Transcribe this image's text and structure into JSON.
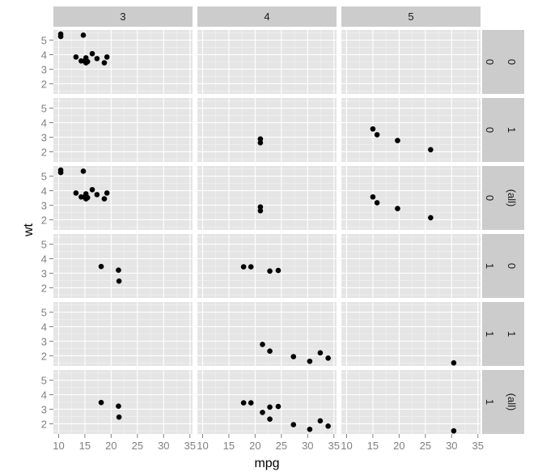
{
  "chart_data": {
    "type": "scatter",
    "xlabel": "mpg",
    "ylabel": "wt",
    "xlim": [
      9,
      35.5
    ],
    "ylim": [
      1.3,
      5.7
    ],
    "x_ticks": [
      10,
      15,
      20,
      25,
      30,
      35
    ],
    "y_ticks": [
      2,
      3,
      4,
      5
    ],
    "grid": true,
    "column_facets": [
      "3",
      "4",
      "5"
    ],
    "row_facets": [
      {
        "label1": "0",
        "label2": "0"
      },
      {
        "label1": "0",
        "label2": "1"
      },
      {
        "label1": "0",
        "label2": "(all)"
      },
      {
        "label1": "1",
        "label2": "0"
      },
      {
        "label1": "1",
        "label2": "1"
      },
      {
        "label1": "1",
        "label2": "(all)"
      }
    ],
    "panels": [
      {
        "row": 0,
        "col": 0,
        "points": [
          [
            10.4,
            5.42
          ],
          [
            10.4,
            5.25
          ],
          [
            14.7,
            5.34
          ],
          [
            13.3,
            3.84
          ],
          [
            14.3,
            3.57
          ],
          [
            15.0,
            3.57
          ],
          [
            15.2,
            3.44
          ],
          [
            15.2,
            3.78
          ],
          [
            15.5,
            3.52
          ],
          [
            16.4,
            4.07
          ],
          [
            17.3,
            3.73
          ],
          [
            18.7,
            3.44
          ],
          [
            19.2,
            3.84
          ]
        ]
      },
      {
        "row": 0,
        "col": 1,
        "points": []
      },
      {
        "row": 0,
        "col": 2,
        "points": []
      },
      {
        "row": 1,
        "col": 0,
        "points": []
      },
      {
        "row": 1,
        "col": 1,
        "points": [
          [
            21.0,
            2.62
          ],
          [
            21.0,
            2.88
          ]
        ]
      },
      {
        "row": 1,
        "col": 2,
        "points": [
          [
            15.0,
            3.57
          ],
          [
            15.8,
            3.17
          ],
          [
            19.7,
            2.77
          ],
          [
            26.0,
            2.14
          ]
        ]
      },
      {
        "row": 2,
        "col": 0,
        "points": [
          [
            10.4,
            5.42
          ],
          [
            10.4,
            5.25
          ],
          [
            14.7,
            5.34
          ],
          [
            13.3,
            3.84
          ],
          [
            14.3,
            3.57
          ],
          [
            15.0,
            3.57
          ],
          [
            15.2,
            3.44
          ],
          [
            15.2,
            3.78
          ],
          [
            15.5,
            3.52
          ],
          [
            16.4,
            4.07
          ],
          [
            17.3,
            3.73
          ],
          [
            18.7,
            3.44
          ],
          [
            19.2,
            3.84
          ]
        ]
      },
      {
        "row": 2,
        "col": 1,
        "points": [
          [
            21.0,
            2.62
          ],
          [
            21.0,
            2.88
          ]
        ]
      },
      {
        "row": 2,
        "col": 2,
        "points": [
          [
            15.0,
            3.57
          ],
          [
            15.8,
            3.17
          ],
          [
            19.7,
            2.77
          ],
          [
            26.0,
            2.14
          ]
        ]
      },
      {
        "row": 3,
        "col": 0,
        "points": [
          [
            18.1,
            3.46
          ],
          [
            21.4,
            3.21
          ],
          [
            21.5,
            2.46
          ]
        ]
      },
      {
        "row": 3,
        "col": 1,
        "points": [
          [
            17.8,
            3.44
          ],
          [
            19.2,
            3.44
          ],
          [
            22.8,
            3.15
          ],
          [
            24.4,
            3.19
          ]
        ]
      },
      {
        "row": 3,
        "col": 2,
        "points": []
      },
      {
        "row": 4,
        "col": 0,
        "points": []
      },
      {
        "row": 4,
        "col": 1,
        "points": [
          [
            21.4,
            2.78
          ],
          [
            22.8,
            2.32
          ],
          [
            27.3,
            1.94
          ],
          [
            30.4,
            1.62
          ],
          [
            32.4,
            2.2
          ],
          [
            33.9,
            1.84
          ]
        ]
      },
      {
        "row": 4,
        "col": 2,
        "points": [
          [
            30.4,
            1.51
          ]
        ]
      },
      {
        "row": 5,
        "col": 0,
        "points": [
          [
            18.1,
            3.46
          ],
          [
            21.4,
            3.21
          ],
          [
            21.5,
            2.46
          ]
        ]
      },
      {
        "row": 5,
        "col": 1,
        "points": [
          [
            17.8,
            3.44
          ],
          [
            19.2,
            3.44
          ],
          [
            22.8,
            3.15
          ],
          [
            24.4,
            3.19
          ],
          [
            21.4,
            2.78
          ],
          [
            22.8,
            2.32
          ],
          [
            27.3,
            1.94
          ],
          [
            30.4,
            1.62
          ],
          [
            32.4,
            2.2
          ],
          [
            33.9,
            1.84
          ]
        ]
      },
      {
        "row": 5,
        "col": 2,
        "points": [
          [
            30.4,
            1.51
          ]
        ]
      }
    ]
  }
}
